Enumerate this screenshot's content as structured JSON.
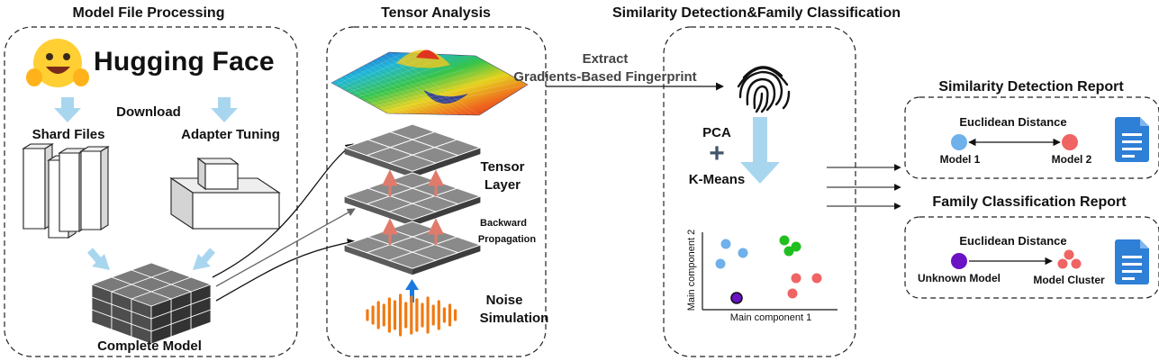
{
  "sections": {
    "model_file_processing": "Model File Processing",
    "tensor_analysis": "Tensor Analysis",
    "similarity_family": "Similarity Detection&Family Classification"
  },
  "hugging_face": {
    "brand": "Hugging Face",
    "download": "Download",
    "shard_files": "Shard Files",
    "adapter_tuning": "Adapter Tuning",
    "complete_model": "Complete Model"
  },
  "tensor": {
    "tensor_layer_line1": "Tensor",
    "tensor_layer_line2": "Layer",
    "backward_line1": "Backward",
    "backward_line2": "Propagation",
    "noise_line1": "Noise",
    "noise_line2": "Simulation"
  },
  "extract": {
    "line1": "Extract",
    "line2": "Gradients-Based Fingerprint"
  },
  "classification": {
    "pca": "PCA",
    "plus": "+",
    "kmeans": "K-Means",
    "x_axis": "Main component 1",
    "y_axis": "Main component 2"
  },
  "similarity_report": {
    "title": "Similarity Detection Report",
    "metric": "Euclidean Distance",
    "model1": "Model 1",
    "model2": "Model 2"
  },
  "family_report": {
    "title": "Family Classification Report",
    "metric": "Euclidean Distance",
    "unknown": "Unknown Model",
    "cluster": "Model Cluster"
  },
  "colors": {
    "light_blue_arrow": "#a9d6ef",
    "blue_point": "#6fb1ea",
    "green_point": "#1fbf1f",
    "red_point": "#f06464",
    "purple_point": "#6a12c4",
    "noise_orange": "#f07a12",
    "red_arrow": "#e07b6c",
    "doc_blue": "#2e7fd6"
  }
}
